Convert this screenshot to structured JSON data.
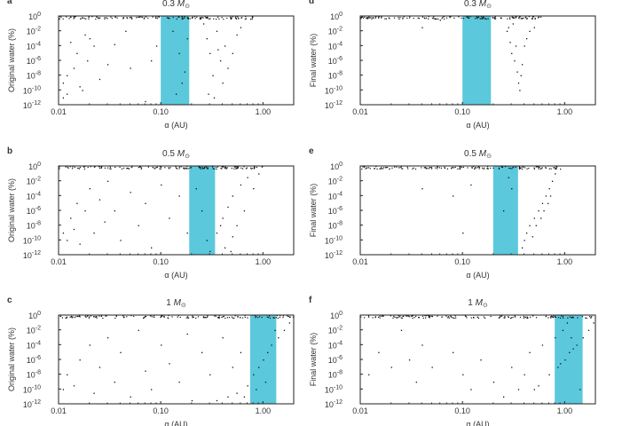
{
  "chart_data": [
    {
      "type": "scatter",
      "panel_label": "a",
      "title": "0.3",
      "title_unit": "M",
      "title_sub": "⊙",
      "ylabel": "Original water (%)",
      "xlabel": "α (AU)",
      "xscale": "log",
      "yscale": "log",
      "xlim": [
        0.01,
        2.0
      ],
      "ylim": [
        1e-12,
        1
      ],
      "xticks": [
        "0.01",
        "0.10",
        "1.00"
      ],
      "yticks": [
        "10^0",
        "10^-2",
        "10^-4",
        "10^-6",
        "10^-8",
        "10^-10",
        "10^-12"
      ],
      "habitable_zone": [
        0.1,
        0.19
      ],
      "hz_color": "#5bc8dc",
      "points": [
        [
          0.011,
          -9
        ],
        [
          0.012,
          -10.5
        ],
        [
          0.013,
          -3.5
        ],
        [
          0.014,
          -7
        ],
        [
          0.015,
          -5
        ],
        [
          0.016,
          -9.5
        ],
        [
          0.011,
          -11
        ],
        [
          0.012,
          -8
        ],
        [
          0.018,
          -2.5
        ],
        [
          0.02,
          -3
        ],
        [
          0.019,
          -6
        ],
        [
          0.017,
          -10
        ],
        [
          0.022,
          -4
        ],
        [
          0.025,
          -8.5
        ],
        [
          0.03,
          -6.5
        ],
        [
          0.035,
          -3.8
        ],
        [
          0.045,
          -2
        ],
        [
          0.05,
          -7
        ],
        [
          0.07,
          -11.5
        ],
        [
          0.09,
          -4
        ],
        [
          0.08,
          -6
        ],
        [
          0.13,
          -2
        ],
        [
          0.15,
          -5
        ],
        [
          0.17,
          -7.5
        ],
        [
          0.14,
          -10.5
        ],
        [
          0.18,
          -3
        ],
        [
          0.16,
          -9
        ],
        [
          0.26,
          -1
        ],
        [
          0.28,
          -3
        ],
        [
          0.3,
          -5
        ],
        [
          0.32,
          -8
        ],
        [
          0.35,
          -2
        ],
        [
          0.38,
          -6
        ],
        [
          0.4,
          -9
        ],
        [
          0.42,
          -4
        ],
        [
          0.45,
          -7
        ],
        [
          0.5,
          -5
        ],
        [
          0.55,
          -2.5
        ],
        [
          0.6,
          -1.5
        ],
        [
          0.29,
          -10.5
        ],
        [
          0.33,
          -11
        ],
        [
          0.36,
          -4.5
        ]
      ],
      "saturated_range": [
        0.01,
        0.8
      ]
    },
    {
      "type": "scatter",
      "panel_label": "b",
      "title": "0.5",
      "title_unit": "M",
      "title_sub": "⊙",
      "ylabel": "Original water (%)",
      "xlabel": "α (AU)",
      "xscale": "log",
      "yscale": "log",
      "xlim": [
        0.01,
        2.0
      ],
      "ylim": [
        1e-12,
        1
      ],
      "xticks": [
        "0.01",
        "0.10",
        "1.00"
      ],
      "yticks": [
        "10^0",
        "10^-2",
        "10^-4",
        "10^-6",
        "10^-8",
        "10^-10",
        "10^-12"
      ],
      "habitable_zone": [
        0.19,
        0.34
      ],
      "hz_color": "#5bc8dc",
      "points": [
        [
          0.011,
          -9
        ],
        [
          0.012,
          -10
        ],
        [
          0.013,
          -7
        ],
        [
          0.014,
          -8.5
        ],
        [
          0.015,
          -5
        ],
        [
          0.016,
          -10.5
        ],
        [
          0.018,
          -6
        ],
        [
          0.02,
          -3
        ],
        [
          0.022,
          -9
        ],
        [
          0.025,
          -4.5
        ],
        [
          0.028,
          -7.5
        ],
        [
          0.03,
          -2
        ],
        [
          0.035,
          -6
        ],
        [
          0.04,
          -10
        ],
        [
          0.05,
          -3.5
        ],
        [
          0.06,
          -8
        ],
        [
          0.07,
          -5
        ],
        [
          0.08,
          -11
        ],
        [
          0.1,
          -2.5
        ],
        [
          0.12,
          -7
        ],
        [
          0.15,
          -4
        ],
        [
          0.18,
          -9
        ],
        [
          0.22,
          -3
        ],
        [
          0.25,
          -6
        ],
        [
          0.28,
          -10
        ],
        [
          0.3,
          -11.5
        ],
        [
          0.35,
          -9
        ],
        [
          0.4,
          -7
        ],
        [
          0.45,
          -5.5
        ],
        [
          0.5,
          -4
        ],
        [
          0.6,
          -2.5
        ],
        [
          0.7,
          -1.5
        ],
        [
          0.38,
          -8
        ],
        [
          0.42,
          -11
        ],
        [
          0.5,
          -9.5
        ],
        [
          0.55,
          -8
        ],
        [
          0.65,
          -6
        ],
        [
          0.8,
          -3
        ],
        [
          0.9,
          -1
        ],
        [
          0.48,
          -11.5
        ]
      ],
      "saturated_range": [
        0.01,
        1.0
      ]
    },
    {
      "type": "scatter",
      "panel_label": "c",
      "title": "1",
      "title_unit": "M",
      "title_sub": "⊙",
      "ylabel": "Original water (%)",
      "xlabel": "α (AU)",
      "xscale": "log",
      "yscale": "log",
      "xlim": [
        0.01,
        2.0
      ],
      "ylim": [
        1e-12,
        1
      ],
      "xticks": [
        "0.01",
        "0.10",
        "1.00"
      ],
      "yticks": [
        "10^0",
        "10^-2",
        "10^-4",
        "10^-6",
        "10^-8",
        "10^-10",
        "10^-12"
      ],
      "habitable_zone": [
        0.75,
        1.35
      ],
      "hz_color": "#5bc8dc",
      "points": [
        [
          0.011,
          -10
        ],
        [
          0.012,
          -8
        ],
        [
          0.014,
          -9.5
        ],
        [
          0.016,
          -6
        ],
        [
          0.02,
          -4
        ],
        [
          0.022,
          -10.5
        ],
        [
          0.025,
          -7
        ],
        [
          0.03,
          -3
        ],
        [
          0.035,
          -9
        ],
        [
          0.04,
          -5
        ],
        [
          0.05,
          -11
        ],
        [
          0.06,
          -2
        ],
        [
          0.07,
          -7.5
        ],
        [
          0.08,
          -10
        ],
        [
          0.1,
          -4
        ],
        [
          0.12,
          -6.5
        ],
        [
          0.15,
          -9
        ],
        [
          0.18,
          -2.5
        ],
        [
          0.2,
          -11.5
        ],
        [
          0.25,
          -5
        ],
        [
          0.3,
          -8
        ],
        [
          0.35,
          -11.5
        ],
        [
          0.4,
          -3
        ],
        [
          0.45,
          -11
        ],
        [
          0.5,
          -7
        ],
        [
          0.55,
          -10.5
        ],
        [
          0.6,
          -5
        ],
        [
          0.7,
          -9.5
        ],
        [
          0.8,
          -8
        ],
        [
          0.9,
          -7
        ],
        [
          1.0,
          -6
        ],
        [
          1.1,
          -5
        ],
        [
          1.2,
          -4
        ],
        [
          1.4,
          -3
        ],
        [
          1.6,
          -2
        ],
        [
          1.8,
          -1
        ],
        [
          0.85,
          -10
        ],
        [
          1.05,
          -9
        ],
        [
          1.3,
          -2
        ],
        [
          0.65,
          -11
        ]
      ],
      "saturated_range": [
        0.01,
        2.0
      ]
    },
    {
      "type": "scatter",
      "panel_label": "d",
      "title": "0.3",
      "title_unit": "M",
      "title_sub": "⊙",
      "ylabel": "Final water (%)",
      "xlabel": "α (AU)",
      "xscale": "log",
      "yscale": "log",
      "xlim": [
        0.01,
        2.0
      ],
      "ylim": [
        1e-12,
        1
      ],
      "xticks": [
        "0.01",
        "0.10",
        "1.00"
      ],
      "yticks": [
        "10^0",
        "10^-2",
        "10^-4",
        "10^-6",
        "10^-8",
        "10^-10",
        "10^-12"
      ],
      "habitable_zone": [
        0.1,
        0.19
      ],
      "hz_color": "#5bc8dc",
      "points": [
        [
          0.27,
          -2
        ],
        [
          0.29,
          -3.5
        ],
        [
          0.3,
          -5
        ],
        [
          0.32,
          -6
        ],
        [
          0.34,
          -7.5
        ],
        [
          0.35,
          -9
        ],
        [
          0.37,
          -8
        ],
        [
          0.38,
          -6.5
        ],
        [
          0.4,
          -4
        ],
        [
          0.42,
          -3
        ],
        [
          0.45,
          -2
        ],
        [
          0.5,
          -1.5
        ],
        [
          0.36,
          -10
        ],
        [
          0.33,
          -4
        ],
        [
          0.31,
          -1
        ],
        [
          0.28,
          -1.5
        ],
        [
          0.06,
          -0.5
        ],
        [
          0.04,
          -1.5
        ]
      ],
      "saturated_range": [
        0.01,
        0.6
      ]
    },
    {
      "type": "scatter",
      "panel_label": "e",
      "title": "0.5",
      "title_unit": "M",
      "title_sub": "⊙",
      "ylabel": "Final water (%)",
      "xlabel": "α (AU)",
      "xscale": "log",
      "yscale": "log",
      "xlim": [
        0.01,
        2.0
      ],
      "ylim": [
        1e-12,
        1
      ],
      "xticks": [
        "0.01",
        "0.10",
        "1.00"
      ],
      "yticks": [
        "10^0",
        "10^-2",
        "10^-4",
        "10^-6",
        "10^-8",
        "10^-10",
        "10^-12"
      ],
      "habitable_zone": [
        0.2,
        0.35
      ],
      "hz_color": "#5bc8dc",
      "points": [
        [
          0.04,
          -3
        ],
        [
          0.08,
          -4
        ],
        [
          0.12,
          -2.5
        ],
        [
          0.1,
          -9
        ],
        [
          0.38,
          -11
        ],
        [
          0.4,
          -10
        ],
        [
          0.42,
          -9
        ],
        [
          0.45,
          -8
        ],
        [
          0.5,
          -7
        ],
        [
          0.55,
          -6
        ],
        [
          0.6,
          -5
        ],
        [
          0.65,
          -4
        ],
        [
          0.7,
          -3
        ],
        [
          0.75,
          -2
        ],
        [
          0.8,
          -1
        ],
        [
          0.48,
          -9.5
        ],
        [
          0.52,
          -8
        ],
        [
          0.58,
          -7
        ],
        [
          0.62,
          -6
        ],
        [
          0.68,
          -5
        ],
        [
          0.72,
          -4
        ],
        [
          0.3,
          -3
        ],
        [
          0.25,
          -6
        ],
        [
          0.28,
          -1.5
        ]
      ],
      "saturated_range": [
        0.01,
        0.9
      ]
    },
    {
      "type": "scatter",
      "panel_label": "f",
      "title": "1",
      "title_unit": "M",
      "title_sub": "⊙",
      "ylabel": "Final water (%)",
      "xlabel": "α (AU)",
      "xscale": "log",
      "yscale": "log",
      "xlim": [
        0.01,
        2.0
      ],
      "ylim": [
        1e-12,
        1
      ],
      "xticks": [
        "0.01",
        "0.10",
        "1.00"
      ],
      "yticks": [
        "10^0",
        "10^-2",
        "10^-4",
        "10^-6",
        "10^-8",
        "10^-10",
        "10^-12"
      ],
      "habitable_zone": [
        0.8,
        1.5
      ],
      "hz_color": "#5bc8dc",
      "points": [
        [
          0.012,
          -8
        ],
        [
          0.015,
          -5
        ],
        [
          0.02,
          -7
        ],
        [
          0.025,
          -2
        ],
        [
          0.03,
          -6
        ],
        [
          0.035,
          -9
        ],
        [
          0.04,
          -4
        ],
        [
          0.05,
          -7
        ],
        [
          0.08,
          -5
        ],
        [
          0.1,
          -8
        ],
        [
          0.12,
          -10
        ],
        [
          0.15,
          -6
        ],
        [
          0.2,
          -9
        ],
        [
          0.25,
          -11
        ],
        [
          0.3,
          -7
        ],
        [
          0.35,
          -10
        ],
        [
          0.4,
          -8
        ],
        [
          0.45,
          -5
        ],
        [
          0.5,
          -10
        ],
        [
          0.55,
          -9.5
        ],
        [
          0.6,
          -4
        ],
        [
          0.7,
          -8
        ],
        [
          0.8,
          -3
        ],
        [
          0.85,
          -7
        ],
        [
          0.9,
          -6.5
        ],
        [
          1.0,
          -6
        ],
        [
          1.1,
          -5
        ],
        [
          1.2,
          -4.5
        ],
        [
          1.3,
          -4
        ],
        [
          1.5,
          -3
        ],
        [
          1.7,
          -2
        ],
        [
          1.9,
          -1
        ],
        [
          0.95,
          -2
        ],
        [
          1.05,
          -1
        ],
        [
          1.15,
          -3
        ],
        [
          1.4,
          -10
        ]
      ],
      "saturated_range": [
        0.01,
        2.0
      ]
    }
  ]
}
